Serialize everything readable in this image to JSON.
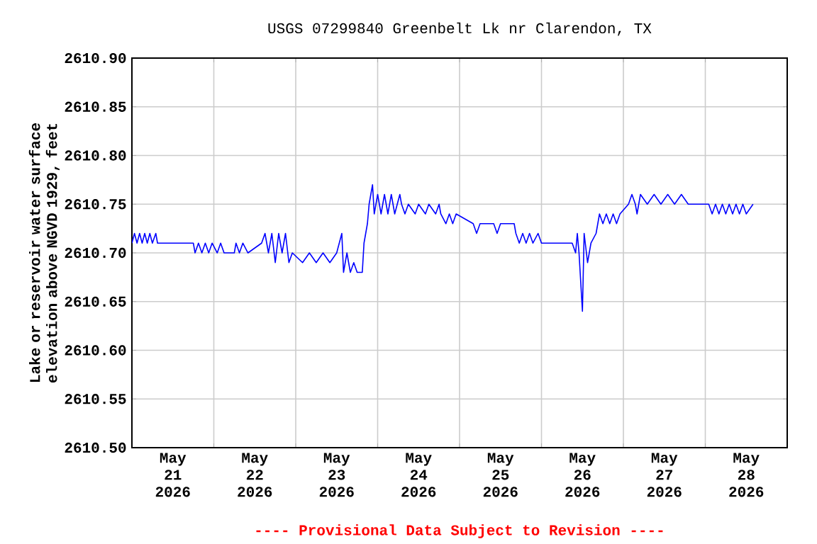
{
  "chart_data": {
    "type": "line",
    "title": "USGS 07299840 Greenbelt Lk nr Clarendon, TX",
    "ylabel": "Lake or reservoir water surface elevation above NGVD 1929, feet",
    "annotations": [
      "---- Provisional Data Subject to Revision ----"
    ],
    "grid": true,
    "marker": "none",
    "line_style": "solid",
    "xlim": [
      "2026-05-21T00:00",
      "2026-05-29T00:00"
    ],
    "xticks": [
      {
        "value": "2026-05-21T12:00",
        "label": "May 21 2026"
      },
      {
        "value": "2026-05-22T12:00",
        "label": "May 22 2026"
      },
      {
        "value": "2026-05-23T12:00",
        "label": "May 23 2026"
      },
      {
        "value": "2026-05-24T12:00",
        "label": "May 24 2026"
      },
      {
        "value": "2026-05-25T12:00",
        "label": "May 25 2026"
      },
      {
        "value": "2026-05-26T12:00",
        "label": "May 26 2026"
      },
      {
        "value": "2026-05-27T12:00",
        "label": "May 27 2026"
      },
      {
        "value": "2026-05-28T12:00",
        "label": "May 28 2026"
      },
      {
        "value": "2026-05-22T00:00",
        "label": null
      },
      {
        "value": "2026-05-23T00:00",
        "label": null
      },
      {
        "value": "2026-05-24T00:00",
        "label": null
      },
      {
        "value": "2026-05-25T00:00",
        "label": null
      },
      {
        "value": "2026-05-26T00:00",
        "label": null
      },
      {
        "value": "2026-05-27T00:00",
        "label": null
      },
      {
        "value": "2026-05-28T00:00",
        "label": null
      }
    ],
    "ylim": [
      2610.5,
      2610.9
    ],
    "yticks": [
      {
        "value": 2610.5,
        "label": "2610.50"
      },
      {
        "value": 2610.55,
        "label": "2610.55"
      },
      {
        "value": 2610.6,
        "label": "2610.60"
      },
      {
        "value": 2610.65,
        "label": "2610.65"
      },
      {
        "value": 2610.7,
        "label": "2610.70"
      },
      {
        "value": 2610.75,
        "label": "2610.75"
      },
      {
        "value": 2610.8,
        "label": "2610.80"
      },
      {
        "value": 2610.85,
        "label": "2610.85"
      },
      {
        "value": 2610.9,
        "label": "2610.90"
      }
    ],
    "series": [
      {
        "color": "#0000ff",
        "x": [
          "2026-05-21T00:00",
          "2026-05-21T00:45",
          "2026-05-21T01:30",
          "2026-05-21T02:15",
          "2026-05-21T03:00",
          "2026-05-21T03:45",
          "2026-05-21T04:30",
          "2026-05-21T05:15",
          "2026-05-21T06:00",
          "2026-05-21T07:00",
          "2026-05-21T07:30",
          "2026-05-21T18:00",
          "2026-05-21T18:30",
          "2026-05-21T19:30",
          "2026-05-21T20:30",
          "2026-05-21T21:30",
          "2026-05-21T22:30",
          "2026-05-21T23:30",
          "2026-05-22T01:00",
          "2026-05-22T02:00",
          "2026-05-22T03:00",
          "2026-05-22T06:00",
          "2026-05-22T06:30",
          "2026-05-22T07:30",
          "2026-05-22T08:30",
          "2026-05-22T10:00",
          "2026-05-22T14:00",
          "2026-05-22T15:00",
          "2026-05-22T16:00",
          "2026-05-22T17:00",
          "2026-05-22T18:00",
          "2026-05-22T19:00",
          "2026-05-22T20:00",
          "2026-05-22T21:00",
          "2026-05-22T22:00",
          "2026-05-22T23:00",
          "2026-05-23T02:00",
          "2026-05-23T04:00",
          "2026-05-23T06:00",
          "2026-05-23T08:00",
          "2026-05-23T10:00",
          "2026-05-23T12:00",
          "2026-05-23T13:30",
          "2026-05-23T14:00",
          "2026-05-23T15:00",
          "2026-05-23T16:00",
          "2026-05-23T17:00",
          "2026-05-23T18:00",
          "2026-05-23T19:30",
          "2026-05-23T20:00",
          "2026-05-23T21:00",
          "2026-05-23T21:30",
          "2026-05-23T22:30",
          "2026-05-23T23:00",
          "2026-05-24T00:00",
          "2026-05-24T01:00",
          "2026-05-24T02:00",
          "2026-05-24T03:00",
          "2026-05-24T04:00",
          "2026-05-24T05:00",
          "2026-05-24T06:30",
          "2026-05-24T07:00",
          "2026-05-24T08:00",
          "2026-05-24T09:00",
          "2026-05-24T11:00",
          "2026-05-24T12:00",
          "2026-05-24T14:00",
          "2026-05-24T15:00",
          "2026-05-24T17:00",
          "2026-05-24T18:00",
          "2026-05-24T18:30",
          "2026-05-24T20:00",
          "2026-05-24T21:00",
          "2026-05-24T22:00",
          "2026-05-24T23:00",
          "2026-05-25T04:00",
          "2026-05-25T05:00",
          "2026-05-25T06:00",
          "2026-05-25T10:00",
          "2026-05-25T11:00",
          "2026-05-25T12:00",
          "2026-05-25T16:00",
          "2026-05-25T16:30",
          "2026-05-25T17:30",
          "2026-05-25T18:30",
          "2026-05-25T19:30",
          "2026-05-25T20:30",
          "2026-05-25T21:30",
          "2026-05-25T23:00",
          "2026-05-26T00:00",
          "2026-05-26T09:00",
          "2026-05-26T10:00",
          "2026-05-26T10:30",
          "2026-05-26T11:00",
          "2026-05-26T12:00",
          "2026-05-26T12:30",
          "2026-05-26T13:30",
          "2026-05-26T14:30",
          "2026-05-26T16:00",
          "2026-05-26T17:00",
          "2026-05-26T18:00",
          "2026-05-26T19:00",
          "2026-05-26T20:00",
          "2026-05-26T21:00",
          "2026-05-26T22:00",
          "2026-05-26T23:00",
          "2026-05-27T01:30",
          "2026-05-27T02:30",
          "2026-05-27T03:30",
          "2026-05-27T04:00",
          "2026-05-27T05:00",
          "2026-05-27T07:00",
          "2026-05-27T09:00",
          "2026-05-27T11:00",
          "2026-05-27T13:00",
          "2026-05-27T15:00",
          "2026-05-27T17:00",
          "2026-05-27T19:00",
          "2026-05-28T01:00",
          "2026-05-28T02:00",
          "2026-05-28T03:00",
          "2026-05-28T04:00",
          "2026-05-28T05:00",
          "2026-05-28T06:00",
          "2026-05-28T07:00",
          "2026-05-28T08:00",
          "2026-05-28T09:00",
          "2026-05-28T10:00",
          "2026-05-28T11:00",
          "2026-05-28T12:00",
          "2026-05-28T14:00"
        ],
        "values": [
          2610.71,
          2610.72,
          2610.71,
          2610.72,
          2610.71,
          2610.72,
          2610.71,
          2610.72,
          2610.71,
          2610.72,
          2610.71,
          2610.71,
          2610.7,
          2610.71,
          2610.7,
          2610.71,
          2610.7,
          2610.71,
          2610.7,
          2610.71,
          2610.7,
          2610.7,
          2610.71,
          2610.7,
          2610.71,
          2610.7,
          2610.71,
          2610.72,
          2610.7,
          2610.72,
          2610.69,
          2610.72,
          2610.7,
          2610.72,
          2610.69,
          2610.7,
          2610.69,
          2610.7,
          2610.69,
          2610.7,
          2610.69,
          2610.7,
          2610.72,
          2610.68,
          2610.7,
          2610.68,
          2610.69,
          2610.68,
          2610.68,
          2610.71,
          2610.73,
          2610.75,
          2610.77,
          2610.74,
          2610.76,
          2610.74,
          2610.76,
          2610.74,
          2610.76,
          2610.74,
          2610.76,
          2610.75,
          2610.74,
          2610.75,
          2610.74,
          2610.75,
          2610.74,
          2610.75,
          2610.74,
          2610.75,
          2610.74,
          2610.73,
          2610.74,
          2610.73,
          2610.74,
          2610.73,
          2610.72,
          2610.73,
          2610.73,
          2610.72,
          2610.73,
          2610.73,
          2610.72,
          2610.71,
          2610.72,
          2610.71,
          2610.72,
          2610.71,
          2610.72,
          2610.71,
          2610.71,
          2610.7,
          2610.72,
          2610.7,
          2610.64,
          2610.72,
          2610.69,
          2610.71,
          2610.72,
          2610.74,
          2610.73,
          2610.74,
          2610.73,
          2610.74,
          2610.73,
          2610.74,
          2610.75,
          2610.76,
          2610.75,
          2610.74,
          2610.76,
          2610.75,
          2610.76,
          2610.75,
          2610.76,
          2610.75,
          2610.76,
          2610.75,
          2610.75,
          2610.74,
          2610.75,
          2610.74,
          2610.75,
          2610.74,
          2610.75,
          2610.74,
          2610.75,
          2610.74,
          2610.75,
          2610.74,
          2610.75
        ]
      }
    ]
  }
}
